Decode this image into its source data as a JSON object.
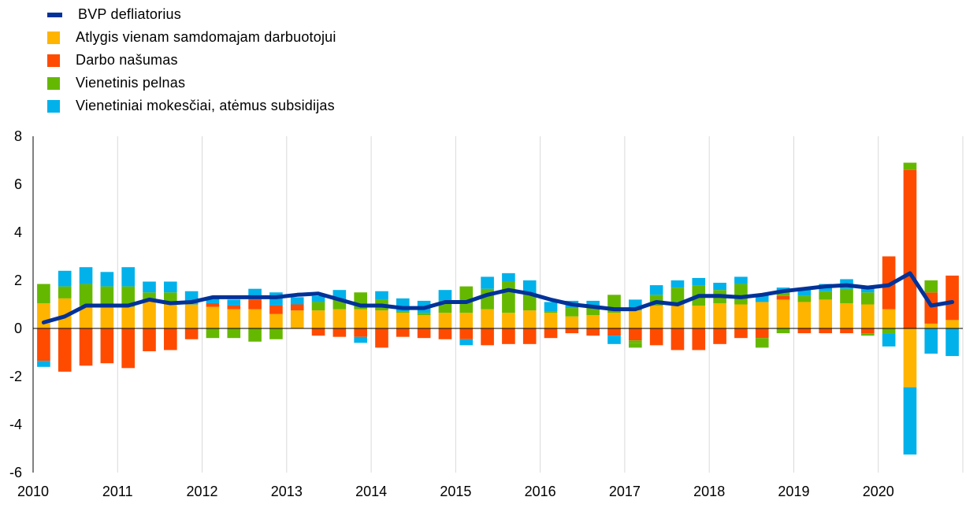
{
  "legend": {
    "items": [
      {
        "label": "BVP defliatorius",
        "color": "#003299",
        "kind": "line"
      },
      {
        "label": "Atlygis vienam samdomajam darbuotojui",
        "color": "#FFB400",
        "kind": "bar"
      },
      {
        "label": "Darbo našumas",
        "color": "#FF4B00",
        "kind": "bar"
      },
      {
        "label": "Vienetinis pelnas",
        "color": "#65B800",
        "kind": "bar"
      },
      {
        "label": "Vienetiniai mokesčiai, atėmus subsidijas",
        "color": "#00B1EA",
        "kind": "bar"
      }
    ]
  },
  "chart_data": {
    "type": "bar",
    "stacked": true,
    "x": [
      "2010Q1",
      "2010Q2",
      "2010Q3",
      "2010Q4",
      "2011Q1",
      "2011Q2",
      "2011Q3",
      "2011Q4",
      "2012Q1",
      "2012Q2",
      "2012Q3",
      "2012Q4",
      "2013Q1",
      "2013Q2",
      "2013Q3",
      "2013Q4",
      "2014Q1",
      "2014Q2",
      "2014Q3",
      "2014Q4",
      "2015Q1",
      "2015Q2",
      "2015Q3",
      "2015Q4",
      "2016Q1",
      "2016Q2",
      "2016Q3",
      "2016Q4",
      "2017Q1",
      "2017Q2",
      "2017Q3",
      "2017Q4",
      "2018Q1",
      "2018Q2",
      "2018Q3",
      "2018Q4",
      "2019Q1",
      "2019Q2",
      "2019Q3",
      "2019Q4",
      "2020Q1",
      "2020Q2",
      "2020Q3",
      "2020Q4"
    ],
    "x_tick_labels": [
      "2010",
      "2011",
      "2012",
      "2013",
      "2014",
      "2015",
      "2016",
      "2017",
      "2018",
      "2019",
      "2020"
    ],
    "ylim": [
      -6,
      8
    ],
    "y_ticks": [
      8,
      6,
      4,
      2,
      0,
      -2,
      -4,
      -6
    ],
    "grid": "vertical",
    "legend_position": "top-left",
    "series": [
      {
        "name": "Atlygis vienam samdomajam darbuotojui",
        "color": "#FFB400",
        "values": [
          1.05,
          1.25,
          0.95,
          0.95,
          0.9,
          1.15,
          1.0,
          1.0,
          0.9,
          0.8,
          0.8,
          0.6,
          0.75,
          0.75,
          0.8,
          0.8,
          0.75,
          0.65,
          0.55,
          0.65,
          0.65,
          0.8,
          0.65,
          0.75,
          0.65,
          0.5,
          0.55,
          0.65,
          0.75,
          0.95,
          1.0,
          0.95,
          1.05,
          1.0,
          1.1,
          1.2,
          1.1,
          1.2,
          1.05,
          1.0,
          0.8,
          -2.45,
          0.2,
          0.35
        ]
      },
      {
        "name": "Darbo našumas",
        "color": "#FF4B00",
        "values": [
          -1.35,
          -1.8,
          -1.55,
          -1.45,
          -1.65,
          -0.95,
          -0.9,
          -0.45,
          0.15,
          0.15,
          0.4,
          0.35,
          0.25,
          -0.3,
          -0.35,
          -0.35,
          -0.8,
          -0.35,
          -0.4,
          -0.45,
          -0.45,
          -0.7,
          -0.65,
          -0.65,
          -0.4,
          -0.2,
          -0.3,
          -0.3,
          -0.5,
          -0.7,
          -0.9,
          -0.9,
          -0.65,
          -0.4,
          -0.4,
          0.15,
          -0.2,
          -0.2,
          -0.2,
          -0.2,
          2.2,
          6.6,
          1.3,
          1.85
        ]
      },
      {
        "name": "Vienetinis pelnas",
        "color": "#65B800",
        "values": [
          0.8,
          0.5,
          0.9,
          0.8,
          0.85,
          0.35,
          0.5,
          0,
          -0.4,
          -0.4,
          -0.55,
          -0.45,
          0,
          0.35,
          0.4,
          0.7,
          0.45,
          0.05,
          0.1,
          0.5,
          1.1,
          0.85,
          1.3,
          0.7,
          0.05,
          0.35,
          0.35,
          0.75,
          -0.1,
          0.45,
          0.7,
          0.85,
          0.55,
          0.85,
          -0.4,
          0.15,
          0.25,
          0.35,
          0.6,
          0.5,
          -0.2,
          0.3,
          0.5,
          0
        ],
        "neg_values": [
          0,
          0,
          0,
          0,
          0,
          0,
          0,
          0,
          0,
          0,
          0,
          0,
          0,
          0,
          0,
          0,
          0,
          0,
          0,
          0,
          0,
          0,
          0,
          0,
          0,
          0,
          0,
          0,
          -0.2,
          0,
          0,
          0,
          0,
          0,
          0,
          -0.2,
          0,
          0,
          0,
          -0.1,
          0,
          0,
          0,
          0
        ]
      },
      {
        "name": "Vienetiniai mokesčiai, atėmus subsidijas",
        "color": "#00B1EA",
        "values": [
          -0.25,
          0.65,
          0.7,
          0.6,
          0.8,
          0.45,
          0.45,
          0.55,
          0.25,
          0.25,
          0.45,
          0.55,
          0.3,
          0.25,
          0.4,
          -0.25,
          0.35,
          0.55,
          0.5,
          0.45,
          -0.25,
          0.5,
          0.35,
          0.55,
          0.4,
          0.3,
          0.25,
          -0.35,
          0.45,
          0.4,
          0.3,
          0.3,
          0.3,
          0.3,
          0.3,
          0.2,
          0.3,
          0.3,
          0.4,
          0.2,
          -0.55,
          -2.8,
          -1.05,
          -1.15
        ]
      }
    ],
    "line": {
      "name": "BVP defliatorius",
      "color": "#003299",
      "values": [
        0.25,
        0.5,
        0.95,
        0.95,
        0.95,
        1.2,
        1.05,
        1.1,
        1.3,
        1.3,
        1.3,
        1.3,
        1.4,
        1.45,
        1.2,
        0.95,
        0.95,
        0.85,
        0.85,
        1.1,
        1.1,
        1.4,
        1.6,
        1.45,
        1.2,
        1.0,
        0.9,
        0.8,
        0.8,
        1.1,
        1.0,
        1.35,
        1.35,
        1.3,
        1.4,
        1.55,
        1.65,
        1.75,
        1.8,
        1.7,
        1.8,
        2.3,
        0.95,
        1.1
      ]
    }
  }
}
